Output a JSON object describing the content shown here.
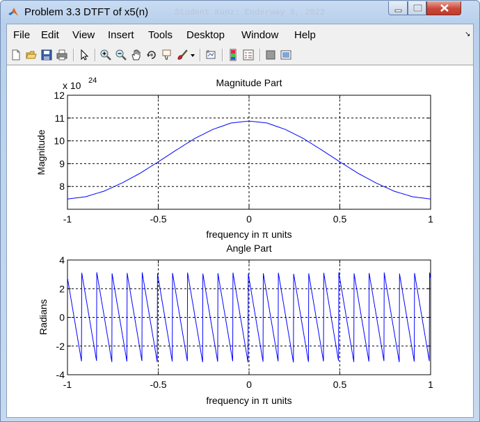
{
  "window": {
    "title": "Problem 3.3 DTFT of x5(n)",
    "background_text": "Student Kunz: Enderway 9, 2022",
    "buttons": [
      "minimize",
      "maximize",
      "close"
    ]
  },
  "menu": [
    "File",
    "Edit",
    "View",
    "Insert",
    "Tools",
    "Desktop",
    "Window",
    "Help"
  ],
  "toolbar_icons": [
    "new-figure-icon",
    "open-file-icon",
    "save-icon",
    "print-icon",
    "pointer-icon",
    "zoom-in-icon",
    "zoom-out-icon",
    "pan-icon",
    "rotate-icon",
    "data-cursor-icon",
    "brush-icon",
    "brush-dropdown-icon",
    "link-plot-icon",
    "colorbar-icon",
    "legend-icon",
    "hide-plot-tools-icon",
    "show-plot-tools-icon"
  ],
  "chart_data": [
    {
      "type": "line",
      "title": "Magnitude Part",
      "xlabel": "frequency in π units",
      "ylabel": "Magnitude",
      "multiplier": "x 10",
      "exponent": "24",
      "xlim": [
        -1,
        1
      ],
      "ylim": [
        7,
        12
      ],
      "xticks": [
        "-1",
        "-0.5",
        "0",
        "0.5",
        "1"
      ],
      "yticks": [
        "12",
        "11",
        "10",
        "9",
        "8"
      ],
      "grid": true,
      "color": "#0000ff",
      "x": [
        -1.0,
        -0.9,
        -0.8,
        -0.7,
        -0.6,
        -0.5,
        -0.4,
        -0.3,
        -0.2,
        -0.1,
        0.0,
        0.1,
        0.2,
        0.3,
        0.4,
        0.5,
        0.6,
        0.7,
        0.8,
        0.9,
        1.0
      ],
      "y": [
        7.45,
        7.55,
        7.79,
        8.15,
        8.58,
        9.08,
        9.6,
        10.1,
        10.5,
        10.78,
        10.87,
        10.78,
        10.5,
        10.1,
        9.6,
        9.08,
        8.58,
        8.15,
        7.79,
        7.55,
        7.45
      ]
    },
    {
      "type": "line",
      "title": "Angle Part",
      "xlabel": "frequency in π units",
      "ylabel": "Radians",
      "xlim": [
        -1,
        1
      ],
      "ylim": [
        -4,
        4
      ],
      "xticks": [
        "-1",
        "-0.5",
        "0",
        "0.5",
        "1"
      ],
      "yticks": [
        "4",
        "2",
        "0",
        "-2",
        "-4"
      ],
      "grid": true,
      "color": "#0000ff",
      "sawtooth": {
        "period": 0.0833,
        "max": 3.14,
        "min": -3.14,
        "phase_at_start": 2.75
      }
    }
  ]
}
